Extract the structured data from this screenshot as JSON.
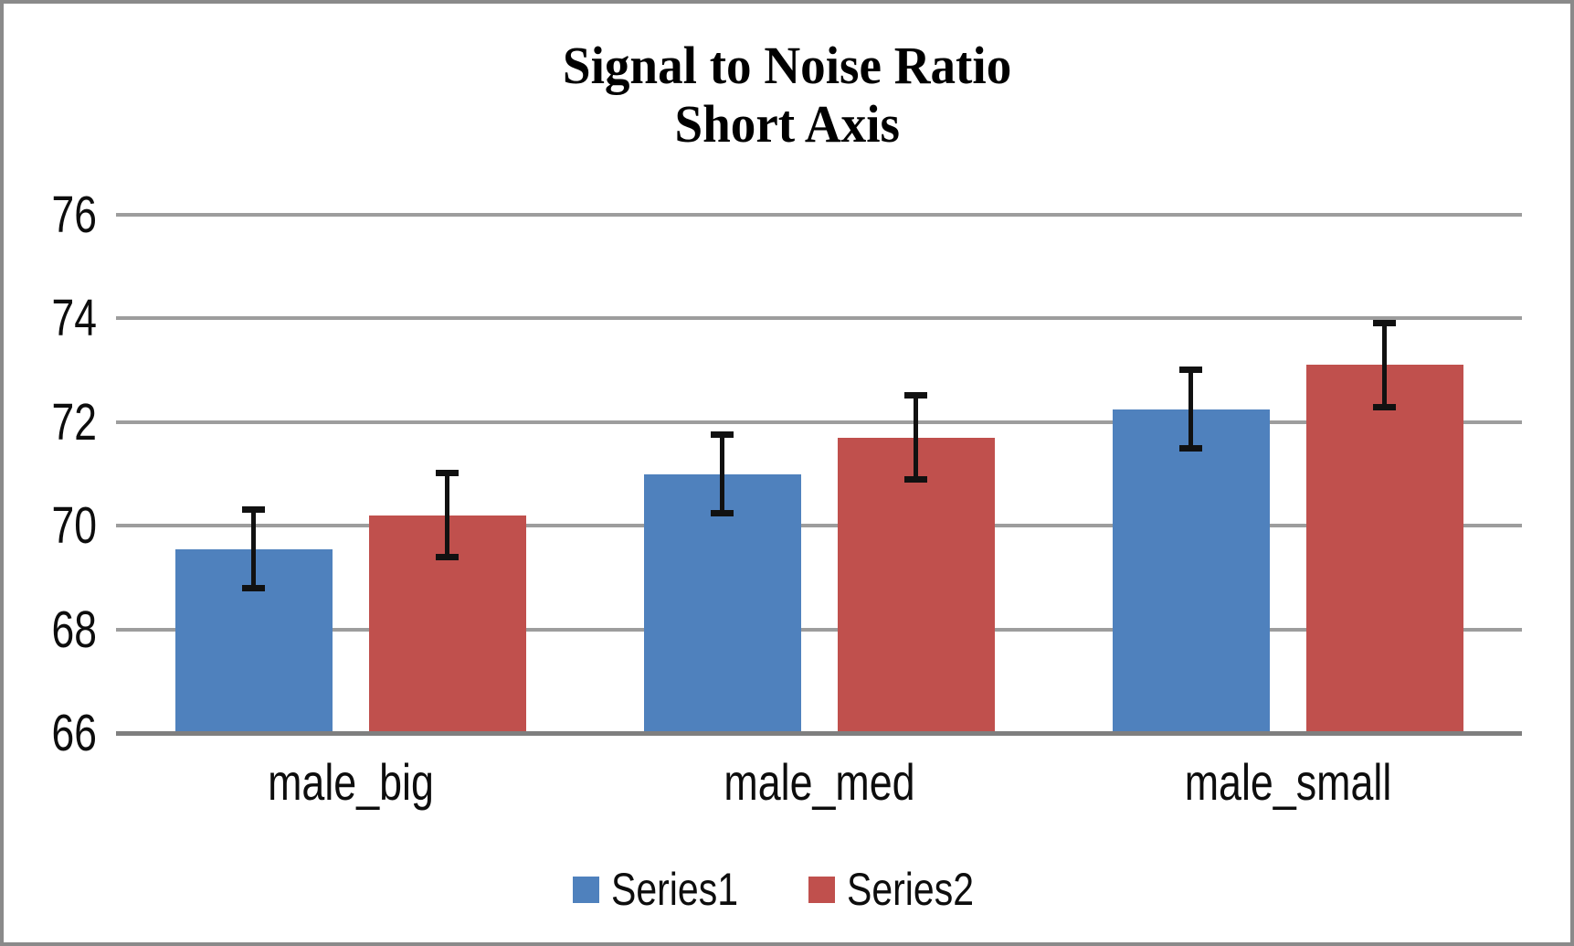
{
  "chart_data": {
    "type": "bar",
    "title": "Signal to Noise Ratio",
    "subtitle": "Short Axis",
    "categories": [
      "male_big",
      "male_med",
      "male_small"
    ],
    "series": [
      {
        "name": "Series1",
        "color": "#4F81BD",
        "values": [
          69.55,
          71.0,
          72.25
        ],
        "errors": [
          0.78,
          0.78,
          0.78
        ]
      },
      {
        "name": "Series2",
        "color": "#C0504D",
        "values": [
          70.2,
          71.7,
          73.1
        ],
        "errors": [
          0.84,
          0.84,
          0.84
        ]
      }
    ],
    "error_bars": true,
    "ylim": [
      66,
      76
    ],
    "yticks": [
      66,
      68,
      70,
      72,
      74,
      76
    ],
    "xlabel": "",
    "ylabel": "",
    "grid": true,
    "legend_position": "bottom",
    "colors": {
      "gridline": "#9d9d9d",
      "axis_line": "#7f7f7f",
      "error_bar": "#111111",
      "text": "#0d0d0d",
      "frame_border": "#8a8a8a",
      "background": "#ffffff"
    }
  }
}
